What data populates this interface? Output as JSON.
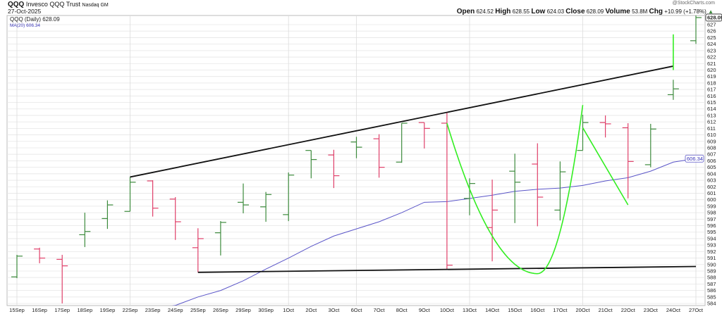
{
  "header": {
    "symbol": "QQQ",
    "name": "Invesco QQQ Trust",
    "exchange": "Nasdaq GM",
    "date": "27-Oct-2025",
    "watermark": "@StockCharts.com",
    "quote": {
      "open_label": "Open",
      "open": "624.52",
      "high_label": "High",
      "high": "628.55",
      "low_label": "Low",
      "low": "624.03",
      "close_label": "Close",
      "close": "628.09",
      "volume_label": "Volume",
      "volume": "53.8M",
      "chg_label": "Chg",
      "chg": "+10.99 (+1.78%)",
      "chg_icon": "triangle-up-icon"
    }
  },
  "legend": {
    "price": "QQQ (Daily) 628.09",
    "ma": "MA(20) 606.34"
  },
  "colors": {
    "up": "#3d8b3d",
    "down": "#e0406a",
    "ma": "#5a55c8",
    "trend": "#111111",
    "annotation": "#33ee22",
    "grid": "#e6e6e6"
  },
  "chart_data": {
    "type": "ohlc",
    "ylim": [
      583.5,
      629
    ],
    "yticks": [
      584,
      585,
      586,
      587,
      588,
      589,
      590,
      591,
      592,
      593,
      594,
      595,
      596,
      597,
      598,
      599,
      600,
      601,
      602,
      603,
      604,
      605,
      606,
      607,
      608,
      609,
      610,
      611,
      612,
      613,
      614,
      615,
      616,
      617,
      618,
      619,
      620,
      621,
      622,
      623,
      624,
      625,
      626,
      627
    ],
    "last_price_label": "628.09",
    "ma_label": "606.34",
    "grid": true,
    "categories": [
      "15Sep",
      "16Sep",
      "17Sep",
      "18Sep",
      "19Sep",
      "22Sep",
      "23Sep",
      "24Sep",
      "25Sep",
      "26Sep",
      "29Sep",
      "30Sep",
      "1Oct",
      "2Oct",
      "3Oct",
      "6Oct",
      "7Oct",
      "8Oct",
      "9Oct",
      "10Oct",
      "13Oct",
      "14Oct",
      "15Oct",
      "16Oct",
      "17Oct",
      "20Oct",
      "21Oct",
      "22Oct",
      "23Oct",
      "24Oct",
      "27Oct"
    ],
    "vgrid": [
      "15Sep",
      "22Sep",
      "1Oct",
      "6Oct",
      "13Oct",
      "20Oct",
      "27Oct"
    ],
    "ohlc": [
      [
        588.1,
        591.5,
        587.9,
        591.3
      ],
      [
        592.4,
        592.6,
        590.2,
        591.0
      ],
      [
        590.8,
        591.5,
        584.0,
        589.8
      ],
      [
        594.6,
        598.0,
        592.7,
        595.1
      ],
      [
        597.1,
        599.9,
        595.5,
        599.2
      ],
      [
        598.2,
        603.5,
        598.2,
        602.7
      ],
      [
        602.9,
        603.0,
        597.4,
        598.7
      ],
      [
        600.1,
        600.4,
        593.8,
        596.6
      ],
      [
        592.6,
        595.6,
        588.8,
        594.0
      ],
      [
        594.9,
        596.7,
        591.4,
        596.5
      ],
      [
        599.6,
        602.5,
        597.9,
        599.2
      ],
      [
        598.9,
        601.2,
        596.6,
        600.8
      ],
      [
        597.7,
        604.2,
        596.7,
        603.8
      ],
      [
        607.6,
        607.6,
        603.3,
        606.2
      ],
      [
        606.9,
        607.7,
        601.8,
        603.7
      ],
      [
        608.9,
        609.7,
        606.4,
        608.1
      ],
      [
        609.4,
        610.1,
        603.4,
        605.0
      ],
      [
        605.8,
        611.8,
        605.7,
        611.8
      ],
      [
        611.9,
        611.9,
        607.9,
        611.0
      ],
      [
        611.8,
        613.4,
        589.3,
        589.9
      ],
      [
        600.2,
        603.3,
        597.6,
        602.5
      ],
      [
        595.7,
        603.1,
        590.5,
        598.4
      ],
      [
        604.4,
        607.1,
        596.4,
        602.7
      ],
      [
        605.5,
        608.7,
        595.9,
        600.4
      ],
      [
        598.4,
        605.9,
        596.8,
        604.3
      ],
      [
        607.6,
        613.1,
        607.6,
        611.9
      ],
      [
        611.9,
        613.0,
        609.6,
        611.7
      ],
      [
        611.1,
        611.8,
        600.2,
        605.9
      ],
      [
        605.4,
        611.7,
        605.0,
        610.9
      ],
      [
        616.2,
        618.5,
        615.4,
        617.1
      ],
      [
        624.52,
        628.55,
        624.03,
        628.09
      ]
    ],
    "ma20": [
      null,
      null,
      null,
      null,
      null,
      null,
      583.2,
      583.7,
      585.0,
      586.0,
      587.5,
      589.3,
      591.0,
      592.8,
      594.4,
      595.5,
      596.6,
      598.0,
      599.6,
      599.7,
      600.2,
      600.7,
      601.3,
      601.6,
      601.8,
      602.2,
      602.9,
      603.4,
      604.4,
      605.8,
      606.34
    ],
    "trendlines": [
      {
        "from": [
          "22Sep",
          603.5
        ],
        "to": [
          "24Oct",
          620.6
        ]
      },
      {
        "from": [
          "25Sep",
          588.8
        ],
        "to": [
          "27Oct",
          589.7
        ]
      }
    ],
    "annotations": {
      "cup": {
        "start": [
          "10Oct",
          611.8
        ],
        "bottom": [
          "16Oct",
          588.6
        ],
        "end": [
          "20Oct",
          614.6
        ]
      },
      "line": {
        "from": [
          "20Oct",
          611.1
        ],
        "to": [
          "22Oct",
          599.2
        ]
      },
      "gap": {
        "from": [
          "24Oct",
          625.5
        ],
        "to": [
          "24Oct",
          620.0
        ]
      }
    }
  }
}
